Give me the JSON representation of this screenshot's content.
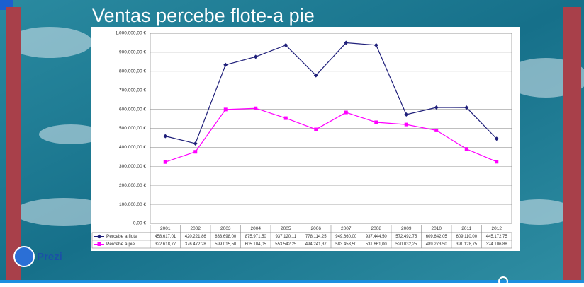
{
  "chart_data": {
    "type": "line",
    "title": "Ventas percebe flote-a pie",
    "categories": [
      "2001",
      "2002",
      "2003",
      "2004",
      "2005",
      "2006",
      "2007",
      "2008",
      "2009",
      "2010",
      "2011",
      "2012"
    ],
    "series": [
      {
        "name": "Percebe a flote",
        "color": "#1f1f7a",
        "values": [
          458617.01,
          420221.86,
          833698.0,
          875971.5,
          937120.11,
          778114.25,
          949660.0,
          937444.5,
          572492.75,
          609642.05,
          609110.0,
          445172.75
        ],
        "value_labels": [
          "458.617,01",
          "420.221,86",
          "833.698,00",
          "875.971,50",
          "937.120,11",
          "778.114,25",
          "949.660,00",
          "937.444,50",
          "572.492,75",
          "609.642,05",
          "609.110,00",
          "445.172,75"
        ]
      },
      {
        "name": "Percebe a pie",
        "color": "#ff00ff",
        "values": [
          322618.77,
          376472.28,
          599015.5,
          605104.05,
          553542.25,
          494241.37,
          583453.5,
          531661.0,
          520032.25,
          489273.5,
          391128.75,
          324106.88
        ],
        "value_labels": [
          "322.618,77",
          "376.472,28",
          "599.015,50",
          "605.104,05",
          "553.542,25",
          "494.241,37",
          "583.453,50",
          "531.661,00",
          "520.032,25",
          "489.273,50",
          "391.128,75",
          "324.106,88"
        ]
      }
    ],
    "ylim": [
      0,
      1000000
    ],
    "yticks": [
      {
        "value": 0,
        "label": "0,00 €"
      },
      {
        "value": 100000,
        "label": "100.000,00 €"
      },
      {
        "value": 200000,
        "label": "200.000,00 €"
      },
      {
        "value": 300000,
        "label": "300.000,00 €"
      },
      {
        "value": 400000,
        "label": "400.000,00 €"
      },
      {
        "value": 500000,
        "label": "500.000,00 €"
      },
      {
        "value": 600000,
        "label": "600.000,00 €"
      },
      {
        "value": 700000,
        "label": "700.000,00 €"
      },
      {
        "value": 800000,
        "label": "800.000,00 €"
      },
      {
        "value": 900000,
        "label": "900.000,00 €"
      },
      {
        "value": 1000000,
        "label": "1.000.000,00 €"
      }
    ],
    "grid": true
  },
  "logo": "Prezi"
}
